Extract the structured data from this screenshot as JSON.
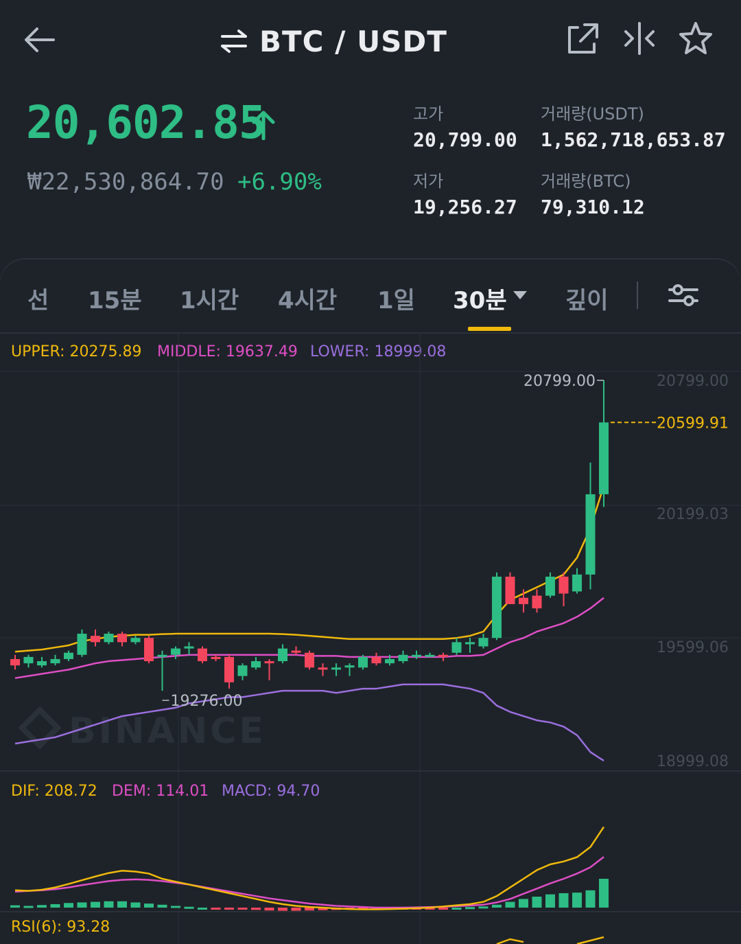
{
  "header": {
    "pair_title": "BTC / USDT",
    "back_icon": "arrow-left-icon",
    "swap_icon": "swap-arrows-icon",
    "icons": [
      "external-link-icon",
      "compare-icon",
      "star-icon"
    ]
  },
  "ticker": {
    "price": "20,602.85",
    "fiat_price": "₩22,530,864.70",
    "change_pct": "+6.90%",
    "stats": {
      "high_label": "고가",
      "high_value": "20,799.00",
      "low_label": "저가",
      "low_value": "19,256.27",
      "vol_usdt_label": "거래량(USDT)",
      "vol_usdt_value": "1,562,718,653.87",
      "vol_btc_label": "거래량(BTC)",
      "vol_btc_value": "79,310.12"
    },
    "colors": {
      "up": "#2ebd85",
      "down": "#f6465d",
      "accent": "#f0b90b"
    }
  },
  "tabs": {
    "items": [
      "선",
      "15분",
      "1시간",
      "4시간",
      "1일",
      "30분",
      "깊이"
    ],
    "active": "30분",
    "settings_icon": "sliders-icon"
  },
  "indicators": {
    "boll": {
      "upper_label": "UPPER: 20275.89",
      "middle_label": "MIDDLE: 19637.49",
      "lower_label": "LOWER: 18999.08"
    },
    "macd": {
      "dif_label": "DIF: 208.72",
      "dem_label": "DEM: 114.01",
      "macd_label": "MACD: 94.70"
    },
    "rsi": {
      "label": "RSI(6): 93.28"
    }
  },
  "chart_data": {
    "type": "candlestick",
    "y_ticks": [
      "20799.00",
      "20199.03",
      "19599.06",
      "18999.08"
    ],
    "ylim": [
      18999.08,
      20799.0
    ],
    "high_annotation": "20799.00",
    "low_annotation": "19276.00",
    "last_price_label": "20599.91",
    "watermark": "BINANCE",
    "candles": [
      {
        "o": 19480,
        "c": 19450,
        "h": 19500,
        "l": 19430
      },
      {
        "o": 19460,
        "c": 19490,
        "h": 19500,
        "l": 19440
      },
      {
        "o": 19450,
        "c": 19470,
        "h": 19490,
        "l": 19440
      },
      {
        "o": 19460,
        "c": 19480,
        "h": 19500,
        "l": 19450
      },
      {
        "o": 19480,
        "c": 19510,
        "h": 19520,
        "l": 19470
      },
      {
        "o": 19500,
        "c": 19600,
        "h": 19620,
        "l": 19490
      },
      {
        "o": 19590,
        "c": 19560,
        "h": 19620,
        "l": 19540
      },
      {
        "o": 19560,
        "c": 19600,
        "h": 19610,
        "l": 19550
      },
      {
        "o": 19600,
        "c": 19560,
        "h": 19610,
        "l": 19540
      },
      {
        "o": 19560,
        "c": 19580,
        "h": 19590,
        "l": 19550
      },
      {
        "o": 19580,
        "c": 19470,
        "h": 19590,
        "l": 19460
      },
      {
        "o": 19490,
        "c": 19500,
        "h": 19520,
        "l": 19330
      },
      {
        "o": 19500,
        "c": 19530,
        "h": 19540,
        "l": 19480
      },
      {
        "o": 19530,
        "c": 19540,
        "h": 19560,
        "l": 19500
      },
      {
        "o": 19530,
        "c": 19470,
        "h": 19540,
        "l": 19460
      },
      {
        "o": 19490,
        "c": 19480,
        "h": 19500,
        "l": 19470
      },
      {
        "o": 19490,
        "c": 19370,
        "h": 19500,
        "l": 19340
      },
      {
        "o": 19400,
        "c": 19450,
        "h": 19460,
        "l": 19380
      },
      {
        "o": 19440,
        "c": 19470,
        "h": 19490,
        "l": 19430
      },
      {
        "o": 19470,
        "c": 19460,
        "h": 19480,
        "l": 19380
      },
      {
        "o": 19470,
        "c": 19530,
        "h": 19550,
        "l": 19460
      },
      {
        "o": 19520,
        "c": 19510,
        "h": 19540,
        "l": 19500
      },
      {
        "o": 19510,
        "c": 19440,
        "h": 19520,
        "l": 19430
      },
      {
        "o": 19440,
        "c": 19430,
        "h": 19460,
        "l": 19400
      },
      {
        "o": 19430,
        "c": 19440,
        "h": 19460,
        "l": 19400
      },
      {
        "o": 19440,
        "c": 19450,
        "h": 19460,
        "l": 19400
      },
      {
        "o": 19440,
        "c": 19490,
        "h": 19500,
        "l": 19430
      },
      {
        "o": 19490,
        "c": 19460,
        "h": 19510,
        "l": 19450
      },
      {
        "o": 19460,
        "c": 19480,
        "h": 19500,
        "l": 19450
      },
      {
        "o": 19470,
        "c": 19500,
        "h": 19520,
        "l": 19460
      },
      {
        "o": 19500,
        "c": 19500,
        "h": 19520,
        "l": 19480
      },
      {
        "o": 19500,
        "c": 19500,
        "h": 19510,
        "l": 19490
      },
      {
        "o": 19500,
        "c": 19490,
        "h": 19510,
        "l": 19470
      },
      {
        "o": 19510,
        "c": 19560,
        "h": 19580,
        "l": 19500
      },
      {
        "o": 19560,
        "c": 19560,
        "h": 19580,
        "l": 19510
      },
      {
        "o": 19540,
        "c": 19580,
        "h": 19600,
        "l": 19530
      },
      {
        "o": 19580,
        "c": 19870,
        "h": 19890,
        "l": 19570
      },
      {
        "o": 19870,
        "c": 19740,
        "h": 19890,
        "l": 19740
      },
      {
        "o": 19770,
        "c": 19740,
        "h": 19810,
        "l": 19700
      },
      {
        "o": 19780,
        "c": 19720,
        "h": 19810,
        "l": 19700
      },
      {
        "o": 19780,
        "c": 19870,
        "h": 19890,
        "l": 19770
      },
      {
        "o": 19870,
        "c": 19790,
        "h": 19890,
        "l": 19730
      },
      {
        "o": 19800,
        "c": 19880,
        "h": 19910,
        "l": 19790
      },
      {
        "o": 19880,
        "c": 20260,
        "h": 20410,
        "l": 19810
      },
      {
        "o": 20260,
        "c": 20599.91,
        "h": 20799,
        "l": 20200
      }
    ],
    "ma_yellow": [
      19515,
      19520,
      19525,
      19535,
      19545,
      19565,
      19575,
      19585,
      19590,
      19595,
      19595,
      19598,
      19600,
      19600,
      19600,
      19600,
      19600,
      19600,
      19600,
      19600,
      19598,
      19595,
      19590,
      19585,
      19580,
      19575,
      19575,
      19575,
      19575,
      19575,
      19575,
      19575,
      19575,
      19580,
      19590,
      19610,
      19690,
      19760,
      19790,
      19820,
      19850,
      19880,
      19960,
      20100,
      20300
    ],
    "ma_pink": [
      19390,
      19400,
      19410,
      19420,
      19430,
      19445,
      19460,
      19470,
      19475,
      19480,
      19485,
      19490,
      19495,
      19500,
      19500,
      19500,
      19500,
      19500,
      19500,
      19500,
      19500,
      19500,
      19495,
      19495,
      19495,
      19490,
      19490,
      19490,
      19490,
      19490,
      19490,
      19490,
      19490,
      19495,
      19495,
      19500,
      19530,
      19560,
      19580,
      19610,
      19630,
      19650,
      19680,
      19720,
      19770
    ],
    "ma_purple": [
      19080,
      19090,
      19100,
      19110,
      19130,
      19150,
      19170,
      19190,
      19210,
      19220,
      19230,
      19240,
      19250,
      19270,
      19280,
      19290,
      19300,
      19300,
      19310,
      19320,
      19330,
      19330,
      19330,
      19330,
      19320,
      19330,
      19340,
      19340,
      19350,
      19360,
      19360,
      19360,
      19360,
      19350,
      19340,
      19320,
      19260,
      19230,
      19210,
      19190,
      19180,
      19160,
      19120,
      19040,
      18999
    ],
    "macd": {
      "dif": [
        60,
        58,
        62,
        70,
        82,
        95,
        108,
        120,
        128,
        125,
        118,
        100,
        90,
        80,
        70,
        60,
        50,
        40,
        30,
        20,
        12,
        6,
        2,
        0,
        -3,
        -5,
        -6,
        -6,
        -5,
        -4,
        -2,
        0,
        4,
        8,
        12,
        20,
        40,
        70,
        100,
        130,
        150,
        160,
        175,
        210,
        280
      ],
      "dem": [
        55,
        58,
        60,
        64,
        70,
        78,
        85,
        92,
        96,
        98,
        96,
        92,
        86,
        80,
        72,
        64,
        56,
        48,
        40,
        32,
        26,
        20,
        14,
        10,
        6,
        4,
        2,
        0,
        0,
        0,
        1,
        2,
        3,
        5,
        7,
        10,
        18,
        30,
        48,
        66,
        84,
        100,
        118,
        140,
        176
      ],
      "hist": [
        8,
        6,
        9,
        12,
        16,
        18,
        20,
        22,
        22,
        18,
        14,
        10,
        6,
        3,
        0,
        -2,
        -4,
        -6,
        -8,
        -10,
        -11,
        -11,
        -10,
        -9,
        -8,
        -6,
        -5,
        -4,
        -4,
        -3,
        -2,
        -2,
        -1,
        0,
        2,
        4,
        10,
        20,
        30,
        38,
        46,
        50,
        52,
        60,
        100
      ]
    }
  }
}
